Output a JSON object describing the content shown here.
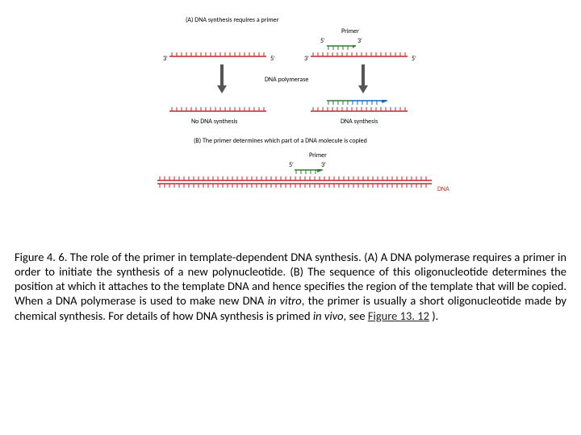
{
  "diagram": {
    "panelA_title": "(A) DNA synthesis requires a primer",
    "panelB_title": "(B) The primer determines which part of a DNA molecule is copied",
    "primer_label": "Primer",
    "five_prime": "5'",
    "three_prime": "3'",
    "polymerase_label": "DNA polymerase",
    "no_synth_label": "No DNA synthesis",
    "synth_label": "DNA synthesis",
    "dna_label": "DNA",
    "colors": {
      "template_strand": "#c62828",
      "primer_strand": "#2e7d32",
      "new_dna": "#1565c0",
      "arrow": "#555555",
      "tick": "#c62828"
    },
    "geometry": {
      "short_strand_len": 120,
      "long_strand_len": 340,
      "tick_spacing": 6,
      "tick_height": 5,
      "primer_len": 28,
      "newdna_len": 40
    }
  },
  "caption": {
    "lead": "Figure 4. 6. ",
    "body1": "The role of the primer in template-dependent DNA synthesis. (A) A DNA polymerase requires a primer in order to initiate the synthesis of a new polynucleotide. (B) The sequence of this oligonucleotide determines the position at which it attaches to the template DNA and hence specifies the region of the template that will be copied. When a DNA polymerase is used to make new DNA ",
    "invitro": "in vitro",
    "body2": ", the primer is usually a short oligonucleotide made by chemical synthesis. For details of how DNA synthesis is primed ",
    "invivo": "in vivo",
    "body3": ", see ",
    "figlink": "Figure 13. 12",
    "body4": " )."
  }
}
